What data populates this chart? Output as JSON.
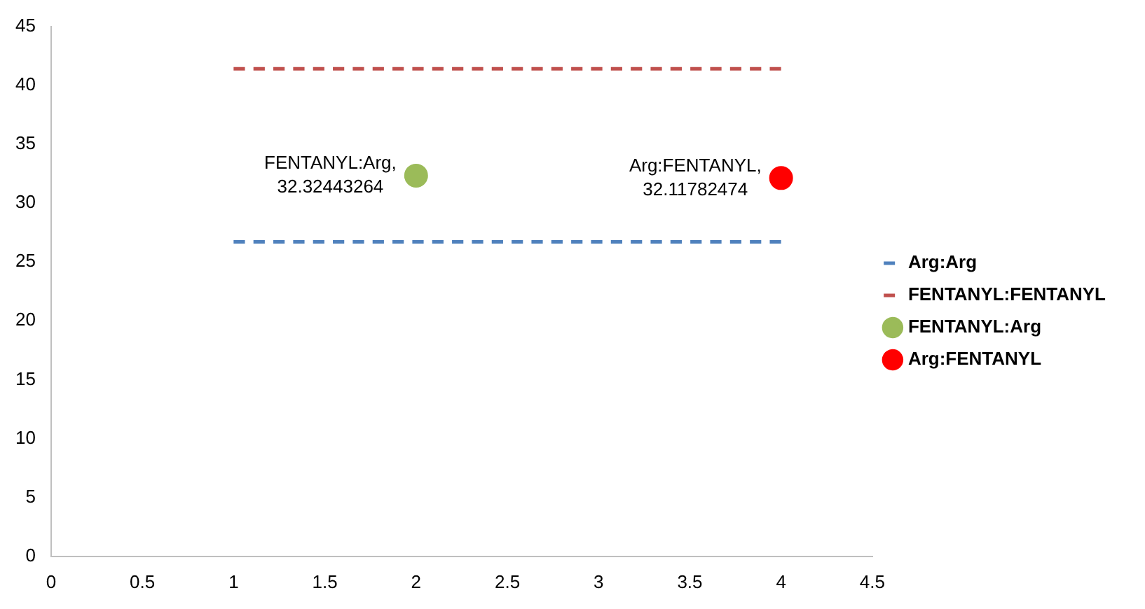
{
  "chart_data": {
    "type": "line",
    "xlim": [
      0,
      4.5
    ],
    "xticks": [
      0,
      0.5,
      1,
      1.5,
      2,
      2.5,
      3,
      3.5,
      4,
      4.5
    ],
    "ylim": [
      0,
      45
    ],
    "yticks": [
      0,
      5,
      10,
      15,
      20,
      25,
      30,
      35,
      40,
      45
    ],
    "grid": false,
    "legend": "right",
    "series": [
      {
        "name": "Arg:Arg",
        "type": "line",
        "color": "#4f81bd",
        "x": [
          1,
          4
        ],
        "values": [
          26.7,
          26.7
        ],
        "line_style": "dashed",
        "marker": "none"
      },
      {
        "name": "FENTANYL:FENTANYL",
        "type": "line",
        "color": "#c0504d",
        "x": [
          1,
          4
        ],
        "values": [
          41.4,
          41.4
        ],
        "line_style": "dashed",
        "marker": "none"
      },
      {
        "name": "FENTANYL:Arg",
        "type": "scatter",
        "color": "#9bbb59",
        "x": [
          2
        ],
        "values": [
          32.32443264
        ],
        "marker": "circle",
        "value_labels": [
          "FENTANYL:Arg, 32.32443264"
        ]
      },
      {
        "name": "Arg:FENTANYL",
        "type": "scatter",
        "color": "#ff0000",
        "x": [
          4
        ],
        "values": [
          32.11782474
        ],
        "marker": "circle",
        "value_labels": [
          "Arg:FENTANYL, 32.11782474"
        ]
      }
    ]
  }
}
